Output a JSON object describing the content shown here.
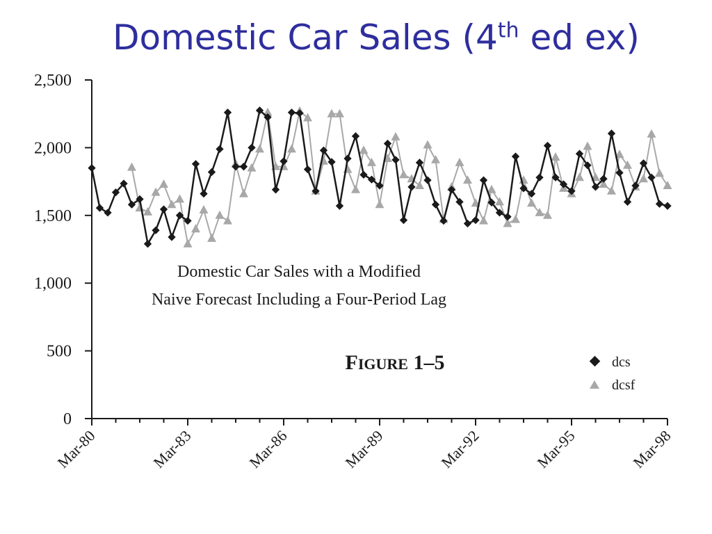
{
  "slide": {
    "title_main": "Domestic Car Sales (4",
    "title_sup": "th",
    "title_tail": " ed ex)"
  },
  "chart_data": {
    "type": "line",
    "title": "",
    "annotation_lines": [
      "Domestic Car Sales with a Modified",
      "Naive Forecast Including a Four-Period Lag"
    ],
    "figure_label": {
      "big1": "F",
      "small": "IGURE",
      "big2": " 1–5"
    },
    "xlabel": "",
    "ylabel": "",
    "ylim": [
      0,
      2500
    ],
    "yticks": [
      0,
      500,
      1000,
      1500,
      2000,
      2500
    ],
    "ytick_labels": [
      "0",
      "500",
      "1,000",
      "1,500",
      "2,000",
      "2,500"
    ],
    "x_tick_labels": [
      "Mar-80",
      "Mar-83",
      "Mar-86",
      "Mar-89",
      "Mar-92",
      "Mar-95",
      "Mar-98"
    ],
    "x_tick_index": [
      0,
      12,
      24,
      36,
      48,
      60,
      72
    ],
    "x_count": 73,
    "grid": false,
    "legend_position": "bottom-right",
    "colors": {
      "dcs": "#1a1a1a",
      "dcsf": "#a8a8a8"
    },
    "series": [
      {
        "name": "dcs",
        "marker": "diamond",
        "values": [
          1850,
          1555,
          1520,
          1670,
          1735,
          1580,
          1620,
          1290,
          1390,
          1545,
          1340,
          1500,
          1460,
          1880,
          1660,
          1820,
          1990,
          2260,
          1860,
          1860,
          2000,
          2275,
          2225,
          1690,
          1900,
          2260,
          2255,
          1840,
          1680,
          1980,
          1895,
          1570,
          1920,
          2085,
          1800,
          1765,
          1720,
          2030,
          1910,
          1465,
          1710,
          1890,
          1760,
          1580,
          1460,
          1690,
          1600,
          1440,
          1465,
          1760,
          1595,
          1520,
          1490,
          1935,
          1700,
          1660,
          1780,
          2015,
          1780,
          1730,
          1680,
          1955,
          1870,
          1710,
          1770,
          2105,
          1815,
          1600,
          1720,
          1885,
          1780,
          1585,
          1570
        ]
      },
      {
        "name": "dcsf",
        "marker": "triangle",
        "values": [
          null,
          null,
          null,
          null,
          null,
          1855,
          1555,
          1525,
          1670,
          1730,
          1580,
          1620,
          1290,
          1400,
          1540,
          1330,
          1500,
          1460,
          1880,
          1660,
          1850,
          1990,
          2260,
          1860,
          1860,
          1990,
          2270,
          2220,
          1680,
          1900,
          2250,
          2250,
          1840,
          1690,
          1980,
          1890,
          1580,
          1920,
          2080,
          1800,
          1770,
          1720,
          2020,
          1910,
          1470,
          1710,
          1890,
          1760,
          1590,
          1460,
          1690,
          1600,
          1440,
          1470,
          1760,
          1590,
          1520,
          1500,
          1930,
          1700,
          1660,
          1780,
          2010,
          1780,
          1730,
          1680,
          1950,
          1870,
          1710,
          1770,
          2100,
          1810,
          1720
        ]
      }
    ]
  }
}
